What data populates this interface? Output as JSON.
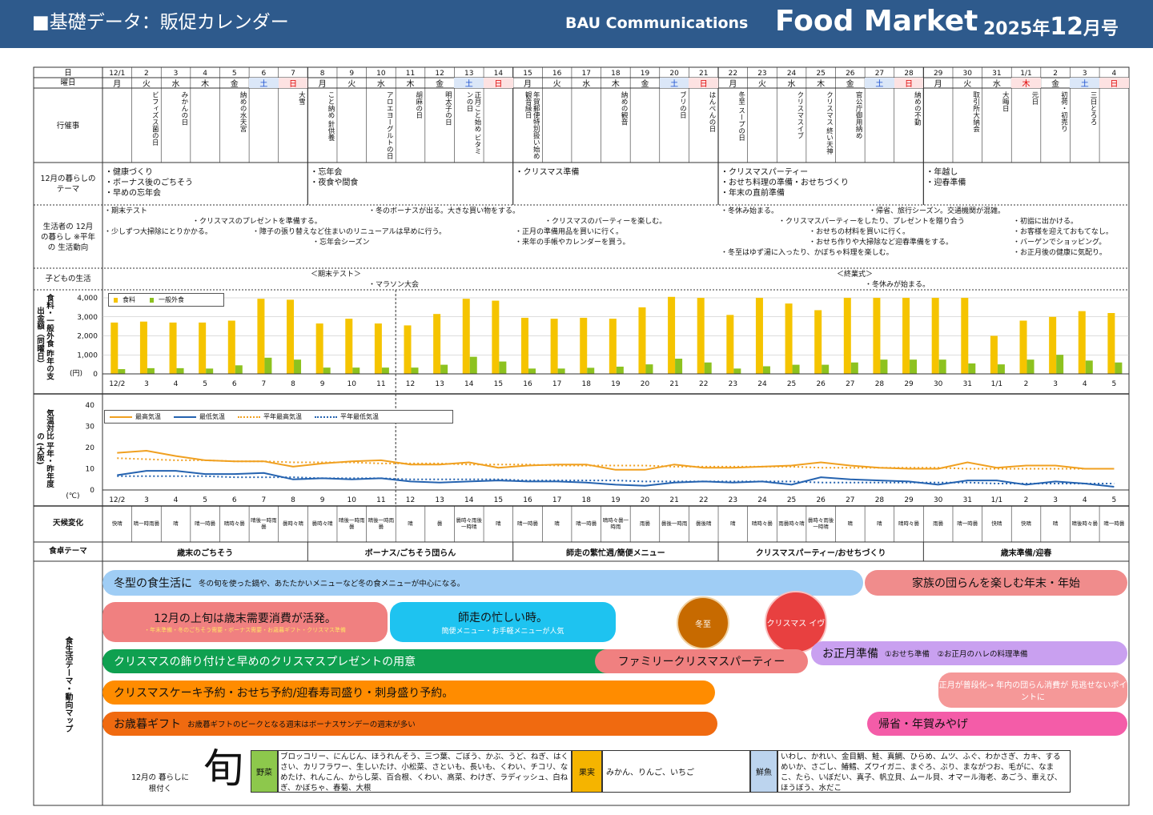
{
  "header": {
    "title": "■基礎データ：販促カレンダー",
    "company": "BAU Communications",
    "brand": "Food Market",
    "issue_year": "2025年",
    "issue_month": "12",
    "issue_suffix": "月号"
  },
  "row_labels": {
    "day": "日",
    "dow": "曜日",
    "events": "行催事",
    "theme": "12月の暮らしの テーマ",
    "trend": "生活者の 12月の暮らし ※平年の 生活動向",
    "kids": "子どもの生活",
    "spend_label": "食料・一般外食 昨年の支出金額（同曜日）",
    "spend_unit": "(円)",
    "temp_label": "気温対比 平年・昨年度の (大阪)",
    "temp_unit": "(℃)",
    "weather": "天候変化",
    "food_theme": "食卓テーマ",
    "map_label": "食生活テーマ・動向マップ"
  },
  "days": [
    {
      "date": "12/1",
      "dow": "月",
      "event": ""
    },
    {
      "date": "2",
      "dow": "火",
      "event": "ビフィズス菌の日"
    },
    {
      "date": "3",
      "dow": "水",
      "event": "みかんの日"
    },
    {
      "date": "4",
      "dow": "木",
      "event": ""
    },
    {
      "date": "5",
      "dow": "金",
      "event": "納めの水天宮"
    },
    {
      "date": "6",
      "dow": "土",
      "event": ""
    },
    {
      "date": "7",
      "dow": "日",
      "event": "大雪"
    },
    {
      "date": "8",
      "dow": "月",
      "event": "こと納め 針供養"
    },
    {
      "date": "9",
      "dow": "火",
      "event": ""
    },
    {
      "date": "10",
      "dow": "水",
      "event": "アロエヨーグルトの日"
    },
    {
      "date": "11",
      "dow": "木",
      "event": "胡麻の日"
    },
    {
      "date": "12",
      "dow": "金",
      "event": "明太子の日"
    },
    {
      "date": "13",
      "dow": "土",
      "event": "正月こと始め ビタミンの日"
    },
    {
      "date": "14",
      "dow": "日",
      "event": ""
    },
    {
      "date": "15",
      "dow": "月",
      "event": "年賀郵便特別扱い始め 観音縁日"
    },
    {
      "date": "16",
      "dow": "火",
      "event": ""
    },
    {
      "date": "17",
      "dow": "水",
      "event": ""
    },
    {
      "date": "18",
      "dow": "木",
      "event": "納めの観音"
    },
    {
      "date": "19",
      "dow": "金",
      "event": ""
    },
    {
      "date": "20",
      "dow": "土",
      "event": "ブリの日"
    },
    {
      "date": "21",
      "dow": "日",
      "event": "はんぺんの日"
    },
    {
      "date": "22",
      "dow": "月",
      "event": "冬至 スープの日"
    },
    {
      "date": "23",
      "dow": "火",
      "event": ""
    },
    {
      "date": "24",
      "dow": "水",
      "event": "クリスマスイブ"
    },
    {
      "date": "25",
      "dow": "木",
      "event": "クリスマス 終い天神"
    },
    {
      "date": "26",
      "dow": "金",
      "event": "官公庁御用納め"
    },
    {
      "date": "27",
      "dow": "土",
      "event": ""
    },
    {
      "date": "28",
      "dow": "日",
      "event": "納めの不動"
    },
    {
      "date": "29",
      "dow": "月",
      "event": ""
    },
    {
      "date": "30",
      "dow": "火",
      "event": "取引所大納会"
    },
    {
      "date": "31",
      "dow": "水",
      "event": "大晦日"
    },
    {
      "date": "1/1",
      "dow": "木",
      "event": "元日"
    },
    {
      "date": "2",
      "dow": "金",
      "event": "初荷・初売り"
    },
    {
      "date": "3",
      "dow": "土",
      "event": "三日とろろ"
    },
    {
      "date": "4",
      "dow": "日",
      "event": ""
    }
  ],
  "themes": [
    {
      "text": "・健康づくり\n・ボーナス後のごちそう\n・早めの忘年会"
    },
    {
      "text": "・忘年会\n・夜食や間食"
    },
    {
      "text": "・クリスマス準備"
    },
    {
      "text": "・クリスマスパーティー\n・おせち料理の準備・おせちづくり\n・年末の直前準備"
    },
    {
      "text": "・年越し\n・迎春準備"
    }
  ],
  "trends": [
    "・期末テスト",
    "・冬のボーナスが出る。大きな買い物をする。",
    "・冬休み始まる。",
    "・帰省、旅行シーズン。交通機関が混雑。",
    "・クリスマスのプレゼントを準備する。",
    "・クリスマスのパーティーを楽しむ。",
    "・クリスマスパーティーをしたり、プレゼントを贈り合う",
    "・初詣に出かける。",
    "・少しずつ大掃除にとりかかる。",
    "・障子の張り替えなど住まいのリニューアルは早めに行う。",
    "・正月の準備用品を買いに行く。",
    "・おせちの材料を買いに行く。",
    "・お客様を迎えておもてなし。",
    "・忘年会シーズン",
    "・来年の手帳やカレンダーを買う。",
    "・おせち作りや大掃除など迎春準備をする。",
    "・バーゲンでショッピング。",
    "・冬至はゆず湯に入ったり、かぼちゃ料理を楽しむ。",
    "・お正月後の健康に気配り。"
  ],
  "kids": [
    "＜期末テスト＞",
    "・マラソン大会",
    "＜終業式＞",
    "・冬休みが始まる。"
  ],
  "chart_data": [
    {
      "type": "bar",
      "title": "",
      "ylabel": "食料・一般外食 昨年の支出金額（同曜日）(円)",
      "ylim": [
        0,
        4000
      ],
      "yticks": [
        "4,000",
        "3,000",
        "2,000",
        "1,000",
        "0"
      ],
      "categories": [
        "12/2",
        "3",
        "4",
        "5",
        "6",
        "7",
        "8",
        "9",
        "10",
        "11",
        "12",
        "13",
        "14",
        "15",
        "16",
        "17",
        "18",
        "19",
        "20",
        "21",
        "22",
        "23",
        "24",
        "25",
        "26",
        "27",
        "28",
        "29",
        "30",
        "31",
        "1/1",
        "2",
        "3",
        "4",
        "5"
      ],
      "series": [
        {
          "name": "食料",
          "color": "#f5c400",
          "values": [
            2700,
            2750,
            2700,
            2700,
            2800,
            3950,
            3900,
            2650,
            2900,
            2650,
            2550,
            3150,
            3950,
            3850,
            2950,
            2900,
            2950,
            2900,
            3500,
            4050,
            4000,
            3100,
            4000,
            3700,
            3350,
            4000,
            4000,
            4000,
            4000,
            4000,
            2000,
            2800,
            3000,
            3300,
            3200
          ]
        },
        {
          "name": "一般外食",
          "color": "#8dc21f",
          "values": [
            250,
            300,
            300,
            280,
            450,
            850,
            750,
            330,
            330,
            330,
            330,
            480,
            900,
            650,
            280,
            280,
            320,
            380,
            500,
            800,
            600,
            280,
            400,
            480,
            480,
            600,
            750,
            750,
            750,
            550,
            500,
            750,
            1000,
            700,
            600
          ]
        }
      ]
    },
    {
      "type": "line",
      "title": "",
      "ylabel": "気温対比 平年・昨年度の (大阪)(℃)",
      "ylim": [
        0,
        40
      ],
      "yticks": [
        "40",
        "30",
        "20",
        "10",
        "0"
      ],
      "categories": [
        "12/2",
        "3",
        "4",
        "5",
        "6",
        "7",
        "8",
        "9",
        "10",
        "11",
        "12",
        "13",
        "14",
        "15",
        "16",
        "17",
        "18",
        "19",
        "20",
        "21",
        "22",
        "23",
        "24",
        "25",
        "26",
        "27",
        "28",
        "29",
        "30",
        "31",
        "1/1",
        "2",
        "3",
        "4",
        "5"
      ],
      "series": [
        {
          "name": "最高気温",
          "color": "#f0a020",
          "style": "solid",
          "values": [
            17.5,
            18.5,
            16,
            14,
            13.5,
            13.5,
            11,
            12.5,
            13.5,
            14,
            12,
            12,
            13,
            10.5,
            11.5,
            12,
            12,
            9.5,
            9.5,
            12,
            10.5,
            10.5,
            11,
            11.5,
            13,
            11.5,
            10.5,
            10,
            10,
            13,
            10.5,
            11.5,
            11.5,
            10,
            10
          ]
        },
        {
          "name": "最低気温",
          "color": "#2563b0",
          "style": "solid",
          "values": [
            7,
            9,
            9,
            7.5,
            7.5,
            8,
            5,
            5.5,
            5,
            5.5,
            4,
            3.5,
            4,
            4.5,
            4,
            4,
            3.5,
            2.5,
            2,
            3.5,
            4,
            3.5,
            4,
            2.5,
            6,
            5,
            4.5,
            4,
            2.5,
            4.5,
            4.5,
            2.5,
            4,
            3,
            1.5
          ]
        },
        {
          "name": "平年最高気温",
          "color": "#f0a020",
          "style": "dotted",
          "values": [
            15,
            14.5,
            14,
            14,
            13.5,
            13.5,
            13,
            13,
            13,
            12.5,
            12.5,
            12.5,
            12,
            12,
            12,
            11.5,
            11.5,
            11.5,
            11.5,
            11,
            11,
            11,
            11,
            11,
            10.5,
            10.5,
            10.5,
            10.5,
            10.5,
            10,
            10,
            10,
            10,
            10,
            10
          ]
        },
        {
          "name": "平年最低気温",
          "color": "#2563b0",
          "style": "dotted",
          "values": [
            6.5,
            6.5,
            6.5,
            6.5,
            6,
            6,
            6,
            5.5,
            5.5,
            5.5,
            5,
            5,
            5,
            5,
            4.5,
            4.5,
            4.5,
            4.5,
            4,
            4,
            4,
            4,
            4,
            4,
            3.5,
            3.5,
            3.5,
            3.5,
            3.5,
            3.5,
            3,
            3,
            3,
            3,
            3
          ]
        }
      ]
    }
  ],
  "weather": [
    "快晴",
    "晴一時雨曇",
    "晴",
    "晴一時曇",
    "晴時々曇",
    "晴後一時雨曇",
    "曇時々晴",
    "曇時々晴",
    "晴後一時雨曇",
    "晴後一時雨曇",
    "晴",
    "曇",
    "曇時々雨後一時晴",
    "晴",
    "晴一時曇",
    "晴",
    "晴一時曇",
    "晴時々曇一時雨",
    "雨曇",
    "曇後一時雨",
    "曇後晴",
    "晴",
    "晴時々曇",
    "雨曇時々晴",
    "曇時々雨後一時晴",
    "晴",
    "晴",
    "晴時々曇",
    "雨曇",
    "晴一時曇",
    "快晴",
    "快晴",
    "晴",
    "晴後時々曇",
    "晴一時曇"
  ],
  "food_themes": [
    "歳末のごちそう",
    "ボーナス/ごちそう団らん",
    "師走の繁忙週/簡便メニュー",
    "クリスマスパーティー/おせちづくり",
    "歳末準備/迎春"
  ],
  "pills": [
    {
      "main": "冬型の食生活に",
      "sub": "冬の旬を使った鍋や、あたたかいメニューなど冬の食メニューが中心になる。"
    },
    {
      "main": "家族の団らんを楽しむ年末・年始",
      "sub": ""
    },
    {
      "main": "12月の上旬は歳末需要消費が活発。",
      "sub": "・年末準備・冬のごちそう需要・ボーナス需要・お歳暮ギフト・クリスマス準備"
    },
    {
      "main": "師走の忙しい時。",
      "sub": "簡便メニュー・お手軽メニューが人気"
    },
    {
      "main": "冬至",
      "sub": ""
    },
    {
      "main": "クリスマス イヴ",
      "sub": ""
    },
    {
      "main": "クリスマスの飾り付けと早めのクリスマスプレゼントの用意",
      "sub": ""
    },
    {
      "main": "ファミリークリスマスパーティー",
      "sub": ""
    },
    {
      "main": "お正月準備",
      "sub": "①おせち準備　②お正月のハレの料理準備"
    },
    {
      "main": "クリスマスケーキ予約・おせち予約/迎春寿司盛り・刺身盛り予約。",
      "sub": ""
    },
    {
      "main": "正月が普段化→ 年内の団らん消費が 見逃せないポイントに",
      "sub": ""
    },
    {
      "main": "お歳暮ギフト",
      "sub": "お歳暮ギフトのピークとなる週末はボーナスサンデーの週末が多い"
    },
    {
      "main": "帰省・年賀みやげ",
      "sub": ""
    }
  ],
  "seasonal": {
    "caption": "12月の 暮らしに根付く",
    "logo": "旬",
    "veg_label": "野菜",
    "veg": "ブロッコリー、にんじん、ほうれんそう、三つ葉、ごぼう、かぶ、うど、ねぎ、はくさい、カリフラワー、生しいたけ、小松菜、さといも、長いも、くわい、チコリ、なめたけ、れんこん、からし菜、百合根、くわい、高菜、わけぎ、ラディッシュ、白ねぎ、かぼちゃ、春菊、大根",
    "fruit_label": "果実",
    "fruit": "みかん、りんご、いちご",
    "fish_label": "鮮魚",
    "fish": "いわし、かれい、金目鯛、鮭、真鯛、ひらめ、ムツ、ふぐ、わかさぎ、カキ、するめいか、さごし、鰆鱈、ズワイガニ、まぐろ、ぶり、まながつお、毛がに、なまこ、たら、いぼだい、真子、帆立貝、ムール貝、オマール海老、あごう、車えび、ほうぼう、水だこ"
  }
}
